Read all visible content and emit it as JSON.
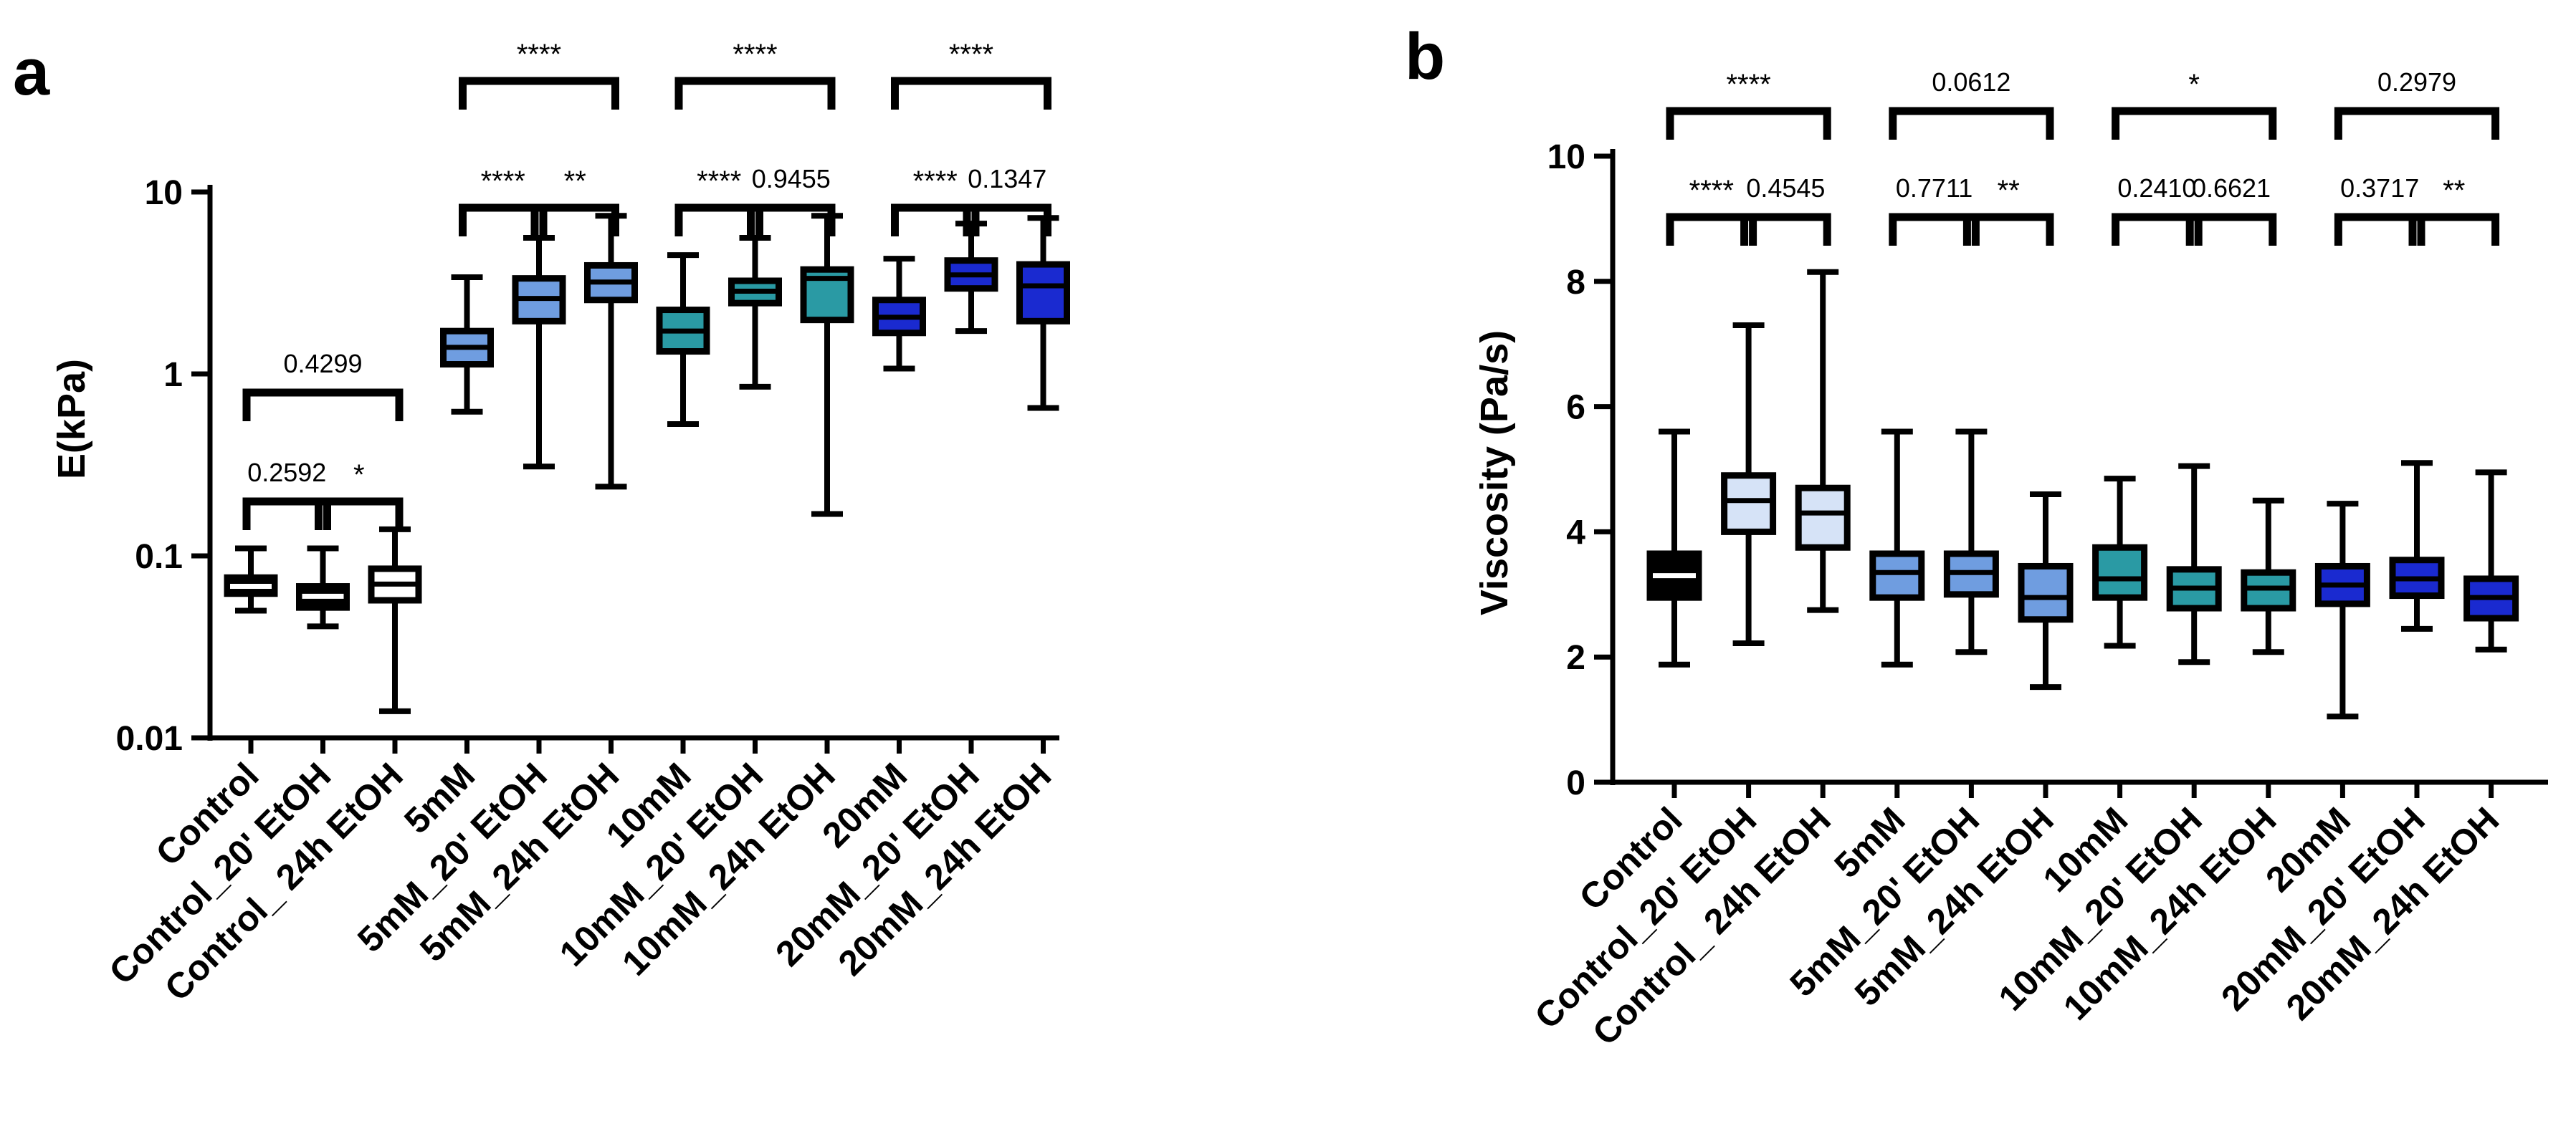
{
  "chart_data": [
    {
      "type": "boxplot",
      "panel": "a",
      "title": "",
      "xlabel": "",
      "ylabel": "E(kPa)",
      "yscale": "log",
      "ylim": [
        0.01,
        10
      ],
      "yticks": [
        0.01,
        0.1,
        1,
        10
      ],
      "ytick_labels": [
        "0.01",
        "0.1",
        "1",
        "10"
      ],
      "grid": false,
      "categories": [
        "Control",
        "Control_20' EtOH",
        "Control_ 24h EtOH",
        "5mM",
        "5mM_20' EtOH",
        "5mM_24h EtOH",
        "10mM",
        "10mM_20' EtOH",
        "10mM_24h EtOH",
        "20mM",
        "20mM_20' EtOH",
        "20mM_24h EtOH"
      ],
      "boxes": [
        {
          "min": 0.05,
          "q1": 0.062,
          "median": 0.068,
          "q3": 0.076,
          "max": 0.11,
          "color": "#000000"
        },
        {
          "min": 0.041,
          "q1": 0.052,
          "median": 0.06,
          "q3": 0.068,
          "max": 0.11,
          "color": "#000000"
        },
        {
          "min": 0.014,
          "q1": 0.057,
          "median": 0.07,
          "q3": 0.085,
          "max": 0.14,
          "color": "#ffffff"
        },
        {
          "min": 0.62,
          "q1": 1.13,
          "median": 1.4,
          "q3": 1.72,
          "max": 3.4,
          "color": "#6f9de0"
        },
        {
          "min": 0.31,
          "q1": 1.95,
          "median": 2.6,
          "q3": 3.35,
          "max": 5.6,
          "color": "#6f9de0"
        },
        {
          "min": 0.24,
          "q1": 2.55,
          "median": 3.2,
          "q3": 3.95,
          "max": 7.4,
          "color": "#6f9de0"
        },
        {
          "min": 0.53,
          "q1": 1.33,
          "median": 1.72,
          "q3": 2.25,
          "max": 4.5,
          "color": "#2a9aa4"
        },
        {
          "min": 0.85,
          "q1": 2.45,
          "median": 2.85,
          "q3": 3.25,
          "max": 5.6,
          "color": "#2a9aa4"
        },
        {
          "min": 0.17,
          "q1": 1.98,
          "median": 3.35,
          "q3": 3.75,
          "max": 7.4,
          "color": "#2a9aa4"
        },
        {
          "min": 1.07,
          "q1": 1.68,
          "median": 2.05,
          "q3": 2.55,
          "max": 4.3,
          "color": "#1a2ad0"
        },
        {
          "min": 1.72,
          "q1": 2.95,
          "median": 3.5,
          "q3": 4.2,
          "max": 6.7,
          "color": "#1a2ad0"
        },
        {
          "min": 0.65,
          "q1": 1.95,
          "median": 3.05,
          "q3": 4.0,
          "max": 7.2,
          "color": "#1a2ad0"
        }
      ],
      "annotations": [
        {
          "i": 0,
          "j": 1,
          "label": "0.2592"
        },
        {
          "i": 1,
          "j": 2,
          "label": "*"
        },
        {
          "i": 0,
          "j": 2,
          "label": "0.4299"
        },
        {
          "i": 3,
          "j": 4,
          "label": "****"
        },
        {
          "i": 4,
          "j": 5,
          "label": "**"
        },
        {
          "i": 3,
          "j": 5,
          "label": "****"
        },
        {
          "i": 6,
          "j": 7,
          "label": "****"
        },
        {
          "i": 7,
          "j": 8,
          "label": "0.9455"
        },
        {
          "i": 6,
          "j": 8,
          "label": "****"
        },
        {
          "i": 9,
          "j": 10,
          "label": "****"
        },
        {
          "i": 10,
          "j": 11,
          "label": "0.1347"
        },
        {
          "i": 9,
          "j": 11,
          "label": "****"
        }
      ]
    },
    {
      "type": "boxplot",
      "panel": "b",
      "title": "",
      "xlabel": "",
      "ylabel": "Viscosity (Pa/s)",
      "yscale": "linear",
      "ylim": [
        0,
        10
      ],
      "yticks": [
        0,
        2,
        4,
        6,
        8,
        10
      ],
      "ytick_labels": [
        "0",
        "2",
        "4",
        "6",
        "8",
        "10"
      ],
      "grid": false,
      "categories": [
        "Control",
        "Control_20' EtOH",
        "Control_ 24h EtOH",
        "5mM",
        "5mM_20' EtOH",
        "5mM_24h EtOH",
        "10mM",
        "10mM_20' EtOH",
        "10mM_24h EtOH",
        "20mM",
        "20mM_20' EtOH",
        "20mM_24h EtOH"
      ],
      "boxes": [
        {
          "min": 1.88,
          "q1": 2.95,
          "median": 3.3,
          "q3": 3.65,
          "max": 5.6,
          "color": "#000000"
        },
        {
          "min": 2.22,
          "q1": 4.0,
          "median": 4.5,
          "q3": 4.9,
          "max": 7.3,
          "color": "#d6e3f7"
        },
        {
          "min": 2.75,
          "q1": 3.75,
          "median": 4.3,
          "q3": 4.7,
          "max": 8.15,
          "color": "#d6e3f7"
        },
        {
          "min": 1.88,
          "q1": 2.95,
          "median": 3.35,
          "q3": 3.65,
          "max": 5.6,
          "color": "#6f9de0"
        },
        {
          "min": 2.08,
          "q1": 3.0,
          "median": 3.35,
          "q3": 3.65,
          "max": 5.6,
          "color": "#6f9de0"
        },
        {
          "min": 1.52,
          "q1": 2.6,
          "median": 2.95,
          "q3": 3.45,
          "max": 4.6,
          "color": "#6f9de0"
        },
        {
          "min": 2.18,
          "q1": 2.95,
          "median": 3.25,
          "q3": 3.75,
          "max": 4.85,
          "color": "#2a9aa4"
        },
        {
          "min": 1.92,
          "q1": 2.78,
          "median": 3.1,
          "q3": 3.4,
          "max": 5.05,
          "color": "#2a9aa4"
        },
        {
          "min": 2.08,
          "q1": 2.78,
          "median": 3.1,
          "q3": 3.35,
          "max": 4.5,
          "color": "#2a9aa4"
        },
        {
          "min": 1.05,
          "q1": 2.85,
          "median": 3.15,
          "q3": 3.45,
          "max": 4.45,
          "color": "#1a2ad0"
        },
        {
          "min": 2.45,
          "q1": 2.98,
          "median": 3.25,
          "q3": 3.55,
          "max": 5.1,
          "color": "#1a2ad0"
        },
        {
          "min": 2.12,
          "q1": 2.62,
          "median": 2.95,
          "q3": 3.25,
          "max": 4.95,
          "color": "#1a2ad0"
        }
      ],
      "annotations": [
        {
          "i": 0,
          "j": 1,
          "label": "****"
        },
        {
          "i": 1,
          "j": 2,
          "label": "0.4545"
        },
        {
          "i": 0,
          "j": 2,
          "label": "****"
        },
        {
          "i": 3,
          "j": 4,
          "label": "0.7711"
        },
        {
          "i": 4,
          "j": 5,
          "label": "**"
        },
        {
          "i": 3,
          "j": 5,
          "label": "0.0612"
        },
        {
          "i": 6,
          "j": 7,
          "label": "0.2410"
        },
        {
          "i": 7,
          "j": 8,
          "label": "0.6621"
        },
        {
          "i": 6,
          "j": 8,
          "label": "*"
        },
        {
          "i": 9,
          "j": 10,
          "label": "0.3717"
        },
        {
          "i": 10,
          "j": 11,
          "label": "**"
        },
        {
          "i": 9,
          "j": 11,
          "label": "0.2979"
        }
      ]
    }
  ]
}
